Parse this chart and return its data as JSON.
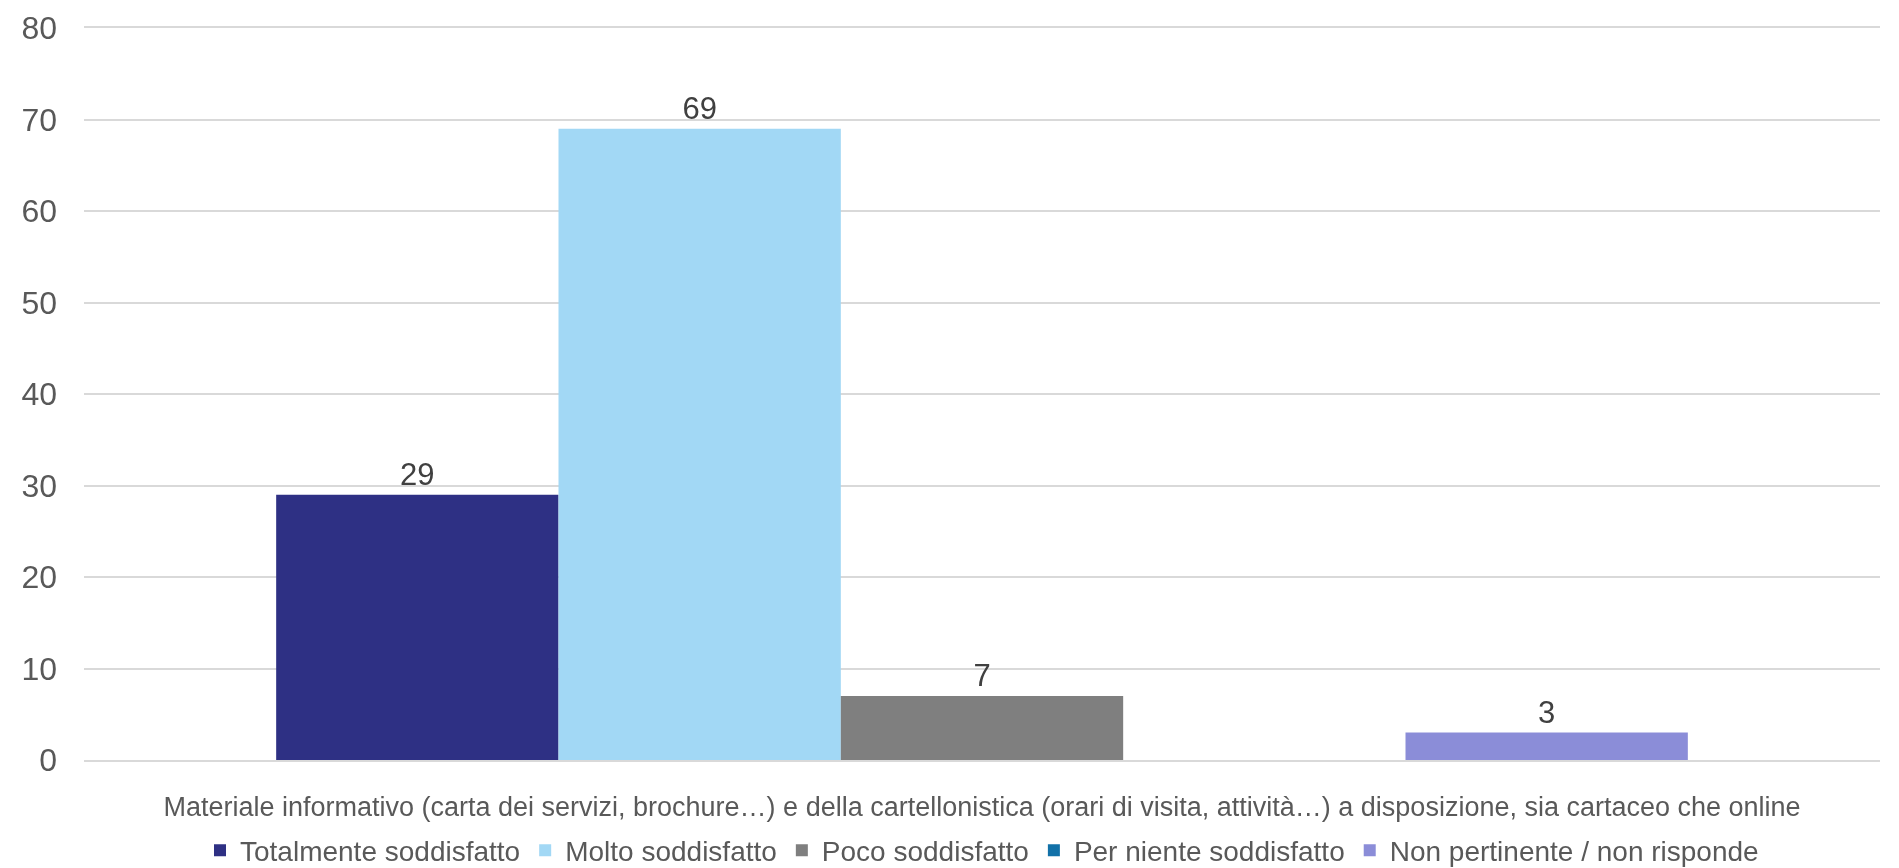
{
  "chart_data": {
    "type": "bar",
    "categories": [
      "Materiale informativo (carta dei servizi, brochure…) e della cartellonistica (orari di visita, attività…) a disposizione, sia cartaceo che online"
    ],
    "series": [
      {
        "name": "Totalmente soddisfatto",
        "color": "#2e3084",
        "values": [
          29
        ]
      },
      {
        "name": "Molto soddisfatto",
        "color": "#a2d8f5",
        "values": [
          69
        ]
      },
      {
        "name": "Poco soddisfatto",
        "color": "#7f7f7f",
        "values": [
          7
        ]
      },
      {
        "name": "Per niente soddisfatto",
        "color": "#1271a8",
        "values": [
          null
        ]
      },
      {
        "name": "Non pertinente / non risponde",
        "color": "#8b8dd8",
        "values": [
          3
        ]
      }
    ],
    "ylim": [
      0,
      80
    ],
    "yticks": [
      0,
      10,
      20,
      30,
      40,
      50,
      60,
      70,
      80
    ],
    "grid": "y",
    "legend": "bottom",
    "data_labels": true
  }
}
